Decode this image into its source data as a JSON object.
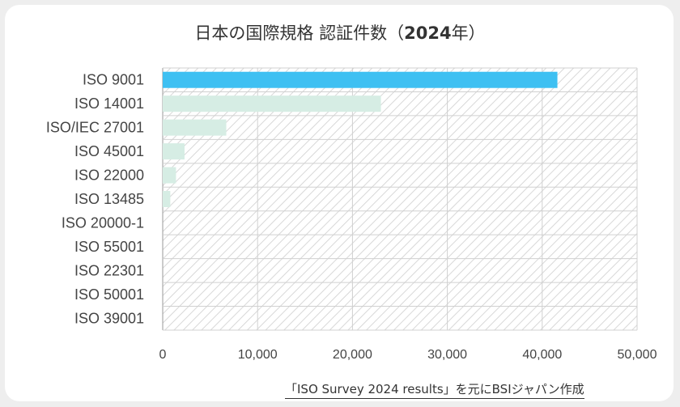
{
  "chart_data": {
    "type": "bar",
    "orientation": "horizontal",
    "title_main": "日本の国際規格 認証件数（",
    "title_year": "2024",
    "title_tail": "年）",
    "categories": [
      "ISO 9001",
      "ISO 14001",
      "ISO/IEC 27001",
      "ISO 45001",
      "ISO 22000",
      "ISO 13485",
      "ISO 20000-1",
      "ISO 55001",
      "ISO 22301",
      "ISO 50001",
      "ISO 39001"
    ],
    "values": [
      41600,
      23000,
      6700,
      2300,
      1400,
      800,
      0,
      0,
      0,
      0,
      0
    ],
    "xlim": [
      0,
      50000
    ],
    "xticks": [
      "0",
      "10,000",
      "20,000",
      "30,000",
      "40,000",
      "50,000"
    ],
    "xtick_values": [
      0,
      10000,
      20000,
      30000,
      40000,
      50000
    ],
    "highlight_color": "#3ec0f2",
    "bar_color": "#d6ede4",
    "grid": true,
    "background_pattern": "diagonal-hatch"
  },
  "source_note": "「ISO Survey 2024 results」を元にBSIジャパン作成"
}
